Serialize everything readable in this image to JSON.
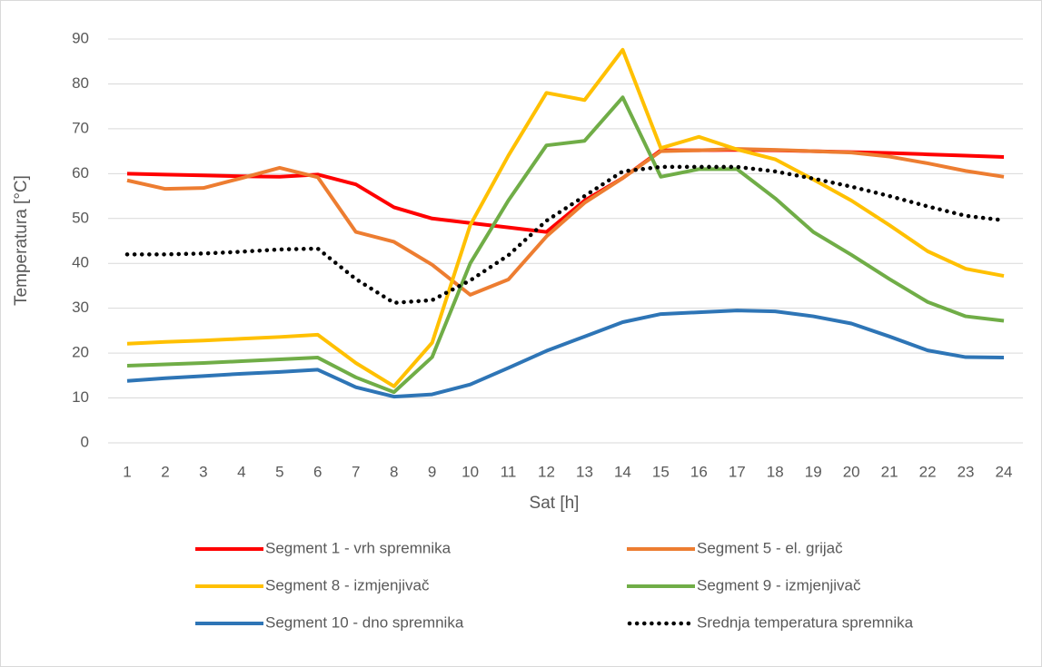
{
  "chart_data": {
    "type": "line",
    "categories": [
      1,
      2,
      3,
      4,
      5,
      6,
      7,
      8,
      9,
      10,
      11,
      12,
      13,
      14,
      15,
      16,
      17,
      18,
      19,
      20,
      21,
      22,
      23,
      24
    ],
    "xlabel": "Sat [h]",
    "ylabel": "Temperatura [°C]",
    "ylim": [
      0,
      90
    ],
    "yticks": [
      0,
      10,
      20,
      30,
      40,
      50,
      60,
      70,
      80,
      90
    ],
    "grid": true,
    "legend": "bottom",
    "series": [
      {
        "name": "Segment 1 - vrh spremnika",
        "color": "#ff0000",
        "values": [
          60,
          59.8,
          59.6,
          59.4,
          59.3,
          59.8,
          57.6,
          52.5,
          50,
          49,
          48,
          47,
          54,
          59,
          65.2,
          65.2,
          65.3,
          65.2,
          65,
          64.8,
          64.6,
          64.3,
          64,
          63.7
        ]
      },
      {
        "name": "Segment 5 - el. grijač",
        "color": "#ed7d31",
        "values": [
          58.5,
          56.6,
          56.8,
          59,
          61.3,
          59.2,
          47,
          44.8,
          39.7,
          33,
          36.4,
          46,
          53.5,
          59,
          65,
          65.2,
          65.5,
          65.3,
          65,
          64.7,
          63.8,
          62.3,
          60.6,
          59.3
        ]
      },
      {
        "name": "Segment 8 - izmjenjivač",
        "color": "#ffc000",
        "values": [
          22.1,
          22.5,
          22.8,
          23.2,
          23.6,
          24.1,
          17.8,
          12.6,
          22.3,
          48.5,
          64,
          78,
          76.4,
          87.6,
          65.7,
          68.2,
          65.4,
          63.2,
          58.7,
          54,
          48.5,
          42.7,
          38.8,
          37.2
        ]
      },
      {
        "name": "Segment 9 - izmjenjivač",
        "color": "#70ad47",
        "values": [
          17.2,
          17.5,
          17.8,
          18.2,
          18.6,
          19,
          14.6,
          11.3,
          19.1,
          40,
          54,
          66.3,
          67.3,
          77,
          59.3,
          61,
          61,
          54.5,
          47,
          41.9,
          36.5,
          31.4,
          28.2,
          27.2
        ]
      },
      {
        "name": "Segment 10 - dno spremnika",
        "color": "#2e75b6",
        "values": [
          13.8,
          14.4,
          14.9,
          15.4,
          15.8,
          16.3,
          12.4,
          10.3,
          10.8,
          13,
          16.7,
          20.5,
          23.7,
          26.9,
          28.7,
          29.1,
          29.5,
          29.3,
          28.2,
          26.6,
          23.7,
          20.6,
          19.1,
          19
        ]
      },
      {
        "name": "Srednja temperatura spremnika",
        "color": "#000000",
        "dashed": true,
        "values": [
          42,
          42,
          42.2,
          42.6,
          43.1,
          43.3,
          36.5,
          31.2,
          31.8,
          36.2,
          41.8,
          49.5,
          55,
          60.5,
          61.5,
          61.5,
          61.5,
          60.5,
          58.9,
          57.1,
          55,
          52.7,
          50.6,
          49.6
        ]
      }
    ]
  }
}
